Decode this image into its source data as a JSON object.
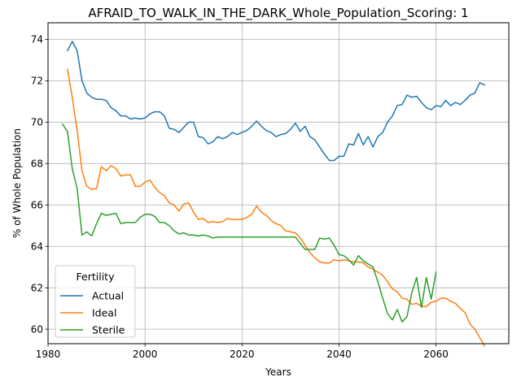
{
  "chart_data": {
    "type": "line",
    "title": "AFRAID_TO_WALK_IN_THE_DARK_Whole_Population_Scoring: 1",
    "xlabel": "Years",
    "ylabel": "% of Whole Population",
    "xlim": [
      1980,
      2075
    ],
    "ylim": [
      59.3,
      74.8
    ],
    "xticks": [
      1980,
      2000,
      2020,
      2040,
      2060
    ],
    "yticks": [
      60,
      62,
      64,
      66,
      68,
      70,
      72,
      74
    ],
    "grid": true,
    "legend": {
      "title": "Fertility",
      "position": "lower-left"
    },
    "series": [
      {
        "name": "Actual",
        "color": "#1f77b4",
        "x": [
          1984,
          1985,
          1986,
          1987,
          1988,
          1989,
          1990,
          1991,
          1992,
          1993,
          1994,
          1995,
          1996,
          1997,
          1998,
          1999,
          2000,
          2001,
          2002,
          2003,
          2004,
          2005,
          2006,
          2007,
          2008,
          2009,
          2010,
          2011,
          2012,
          2013,
          2014,
          2015,
          2016,
          2017,
          2018,
          2019,
          2020,
          2021,
          2022,
          2023,
          2024,
          2025,
          2026,
          2027,
          2028,
          2029,
          2030,
          2031,
          2032,
          2033,
          2034,
          2035,
          2036,
          2037,
          2038,
          2039,
          2040,
          2041,
          2042,
          2043,
          2044,
          2045,
          2046,
          2047,
          2048,
          2049,
          2050,
          2051,
          2052,
          2053,
          2054,
          2055,
          2056,
          2057,
          2058,
          2059,
          2060,
          2061,
          2062,
          2063,
          2064,
          2065,
          2066,
          2067,
          2068,
          2069,
          2070
        ],
        "values": [
          73.45,
          73.9,
          73.45,
          72.0,
          71.4,
          71.2,
          71.1,
          71.1,
          71.05,
          70.7,
          70.55,
          70.3,
          70.3,
          70.15,
          70.2,
          70.15,
          70.2,
          70.4,
          70.5,
          70.5,
          70.3,
          69.7,
          69.65,
          69.5,
          69.75,
          70.0,
          70.0,
          69.3,
          69.25,
          68.95,
          69.05,
          69.3,
          69.2,
          69.3,
          69.5,
          69.4,
          69.5,
          69.6,
          69.8,
          70.05,
          69.8,
          69.6,
          69.5,
          69.3,
          69.4,
          69.45,
          69.65,
          69.95,
          69.55,
          69.8,
          69.3,
          69.15,
          68.8,
          68.45,
          68.15,
          68.15,
          68.35,
          68.35,
          68.95,
          68.9,
          69.45,
          68.9,
          69.3,
          68.8,
          69.3,
          69.5,
          70.0,
          70.3,
          70.8,
          70.85,
          71.3,
          71.2,
          71.25,
          70.95,
          70.7,
          70.6,
          70.8,
          70.75,
          71.05,
          70.8,
          70.95,
          70.85,
          71.05,
          71.3,
          71.4,
          71.9,
          71.8
        ]
      },
      {
        "name": "Ideal",
        "color": "#ff7f0e",
        "x": [
          1984,
          1985,
          1986,
          1987,
          1988,
          1989,
          1990,
          1991,
          1992,
          1993,
          1994,
          1995,
          1996,
          1997,
          1998,
          1999,
          2000,
          2001,
          2002,
          2003,
          2004,
          2005,
          2006,
          2007,
          2008,
          2009,
          2010,
          2011,
          2012,
          2013,
          2014,
          2015,
          2016,
          2017,
          2018,
          2019,
          2020,
          2021,
          2022,
          2023,
          2024,
          2025,
          2026,
          2027,
          2028,
          2029,
          2030,
          2031,
          2032,
          2033,
          2034,
          2035,
          2036,
          2037,
          2038,
          2039,
          2040,
          2041,
          2042,
          2043,
          2044,
          2045,
          2046,
          2047,
          2048,
          2049,
          2050,
          2051,
          2052,
          2053,
          2054,
          2055,
          2056,
          2057,
          2058,
          2059,
          2060,
          2061,
          2062,
          2063,
          2064,
          2065,
          2066,
          2067,
          2068,
          2069,
          2070
        ],
        "values": [
          72.55,
          71.2,
          69.6,
          67.65,
          66.9,
          66.75,
          66.8,
          67.85,
          67.65,
          67.9,
          67.75,
          67.4,
          67.45,
          67.45,
          66.9,
          66.9,
          67.1,
          67.2,
          66.85,
          66.6,
          66.45,
          66.1,
          66.0,
          65.7,
          66.05,
          66.1,
          65.65,
          65.3,
          65.35,
          65.15,
          65.2,
          65.15,
          65.2,
          65.35,
          65.3,
          65.3,
          65.3,
          65.4,
          65.55,
          65.95,
          65.65,
          65.5,
          65.25,
          65.1,
          65.0,
          64.75,
          64.7,
          64.65,
          64.4,
          64.05,
          63.7,
          63.45,
          63.25,
          63.2,
          63.2,
          63.35,
          63.3,
          63.35,
          63.3,
          63.25,
          63.25,
          63.2,
          63.0,
          62.9,
          62.75,
          62.6,
          62.3,
          61.95,
          61.8,
          61.5,
          61.45,
          61.2,
          61.25,
          61.1,
          61.1,
          61.3,
          61.35,
          61.5,
          61.5,
          61.35,
          61.25,
          61.0,
          60.8,
          60.25,
          60.0,
          59.6,
          59.2
        ]
      },
      {
        "name": "Sterile",
        "color": "#2ca02c",
        "x": [
          1983,
          1984,
          1985,
          1986,
          1987,
          1988,
          1989,
          1990,
          1991,
          1992,
          1993,
          1994,
          1995,
          1996,
          1997,
          1998,
          1999,
          2000,
          2001,
          2002,
          2003,
          2004,
          2005,
          2006,
          2007,
          2008,
          2009,
          2010,
          2011,
          2012,
          2013,
          2014,
          2015,
          2016,
          2017,
          2018,
          2019,
          2020,
          2021,
          2022,
          2023,
          2024,
          2025,
          2026,
          2027,
          2028,
          2029,
          2030,
          2031,
          2032,
          2033,
          2034,
          2035,
          2036,
          2037,
          2038,
          2039,
          2040,
          2041,
          2042,
          2043,
          2044,
          2045,
          2046,
          2047,
          2048,
          2049,
          2050,
          2051,
          2052,
          2053,
          2054,
          2055,
          2056,
          2057,
          2058,
          2059,
          2060
        ],
        "values": [
          69.9,
          69.55,
          67.75,
          66.8,
          64.55,
          64.7,
          64.5,
          65.1,
          65.6,
          65.5,
          65.55,
          65.6,
          65.1,
          65.15,
          65.15,
          65.15,
          65.4,
          65.55,
          65.55,
          65.45,
          65.15,
          65.15,
          65.0,
          64.75,
          64.6,
          64.65,
          64.55,
          64.55,
          64.5,
          64.55,
          64.5,
          64.4,
          64.45,
          64.45,
          64.45,
          64.45,
          64.45,
          64.45,
          64.45,
          64.45,
          64.45,
          64.45,
          64.45,
          64.45,
          64.45,
          64.45,
          64.45,
          64.45,
          64.45,
          64.15,
          63.85,
          63.85,
          63.85,
          64.4,
          64.35,
          64.4,
          64.05,
          63.6,
          63.55,
          63.35,
          63.1,
          63.55,
          63.3,
          63.15,
          63.0,
          62.3,
          61.5,
          60.75,
          60.45,
          60.95,
          60.35,
          60.6,
          61.75,
          62.5,
          61.05,
          62.5,
          61.45,
          62.75
        ]
      }
    ]
  }
}
